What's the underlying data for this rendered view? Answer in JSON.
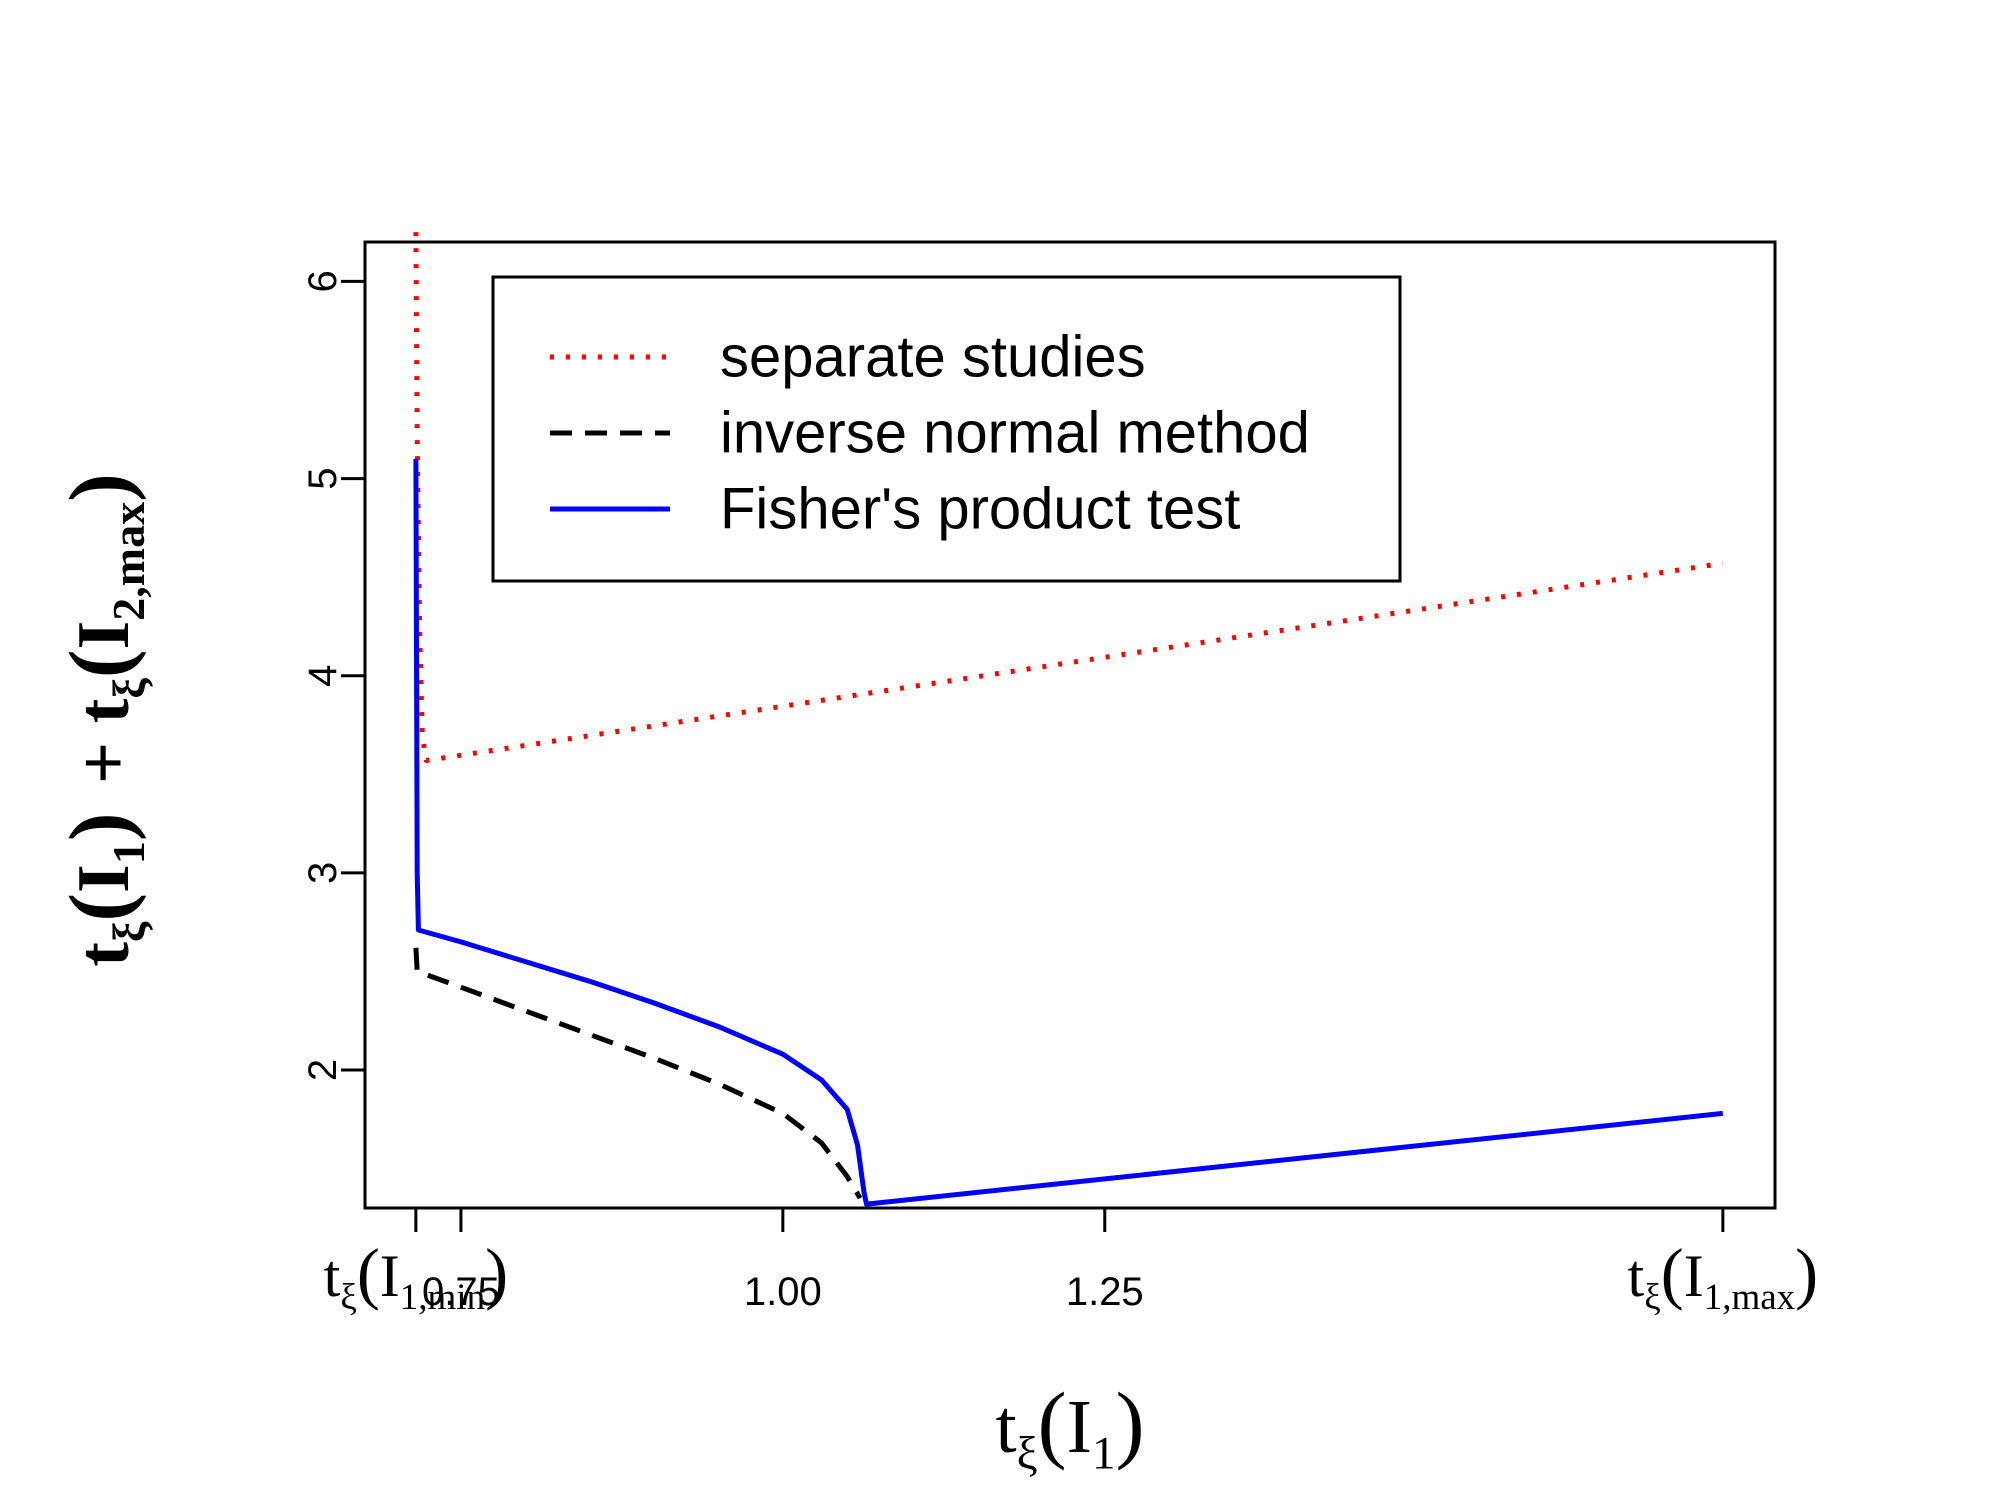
{
  "chart_data": {
    "type": "line",
    "title": "",
    "xlabel": {
      "t": "t",
      "sub": "ξ",
      "open": "(",
      "body": "I",
      "bsub": "1",
      "close": ")"
    },
    "ylabel": {
      "part1": {
        "t": "t",
        "sub": "ξ",
        "open": "(",
        "body": "I",
        "bsub": "1",
        "close": ")"
      },
      "plus": "+",
      "part2": {
        "t": "t",
        "sub": "ξ",
        "open": "(",
        "body": "I",
        "bsub": "2,max",
        "close": ")"
      }
    },
    "xlim": [
      0.6755,
      1.7705
    ],
    "ylim": [
      1.3,
      6.2
    ],
    "x_ticks": [
      {
        "value": 0.715,
        "math": {
          "t": "t",
          "sub": "ξ",
          "open": "(",
          "body": "I",
          "bsub": "1,min",
          "close": ")"
        }
      },
      {
        "value": 0.75,
        "label": "0.75"
      },
      {
        "value": 1.0,
        "label": "1.00"
      },
      {
        "value": 1.25,
        "label": "1.25"
      },
      {
        "value": 1.73,
        "math": {
          "t": "t",
          "sub": "ξ",
          "open": "(",
          "body": "I",
          "bsub": "1,max",
          "close": ")"
        }
      }
    ],
    "y_ticks": [
      2,
      3,
      4,
      5,
      6
    ],
    "legend": {
      "position": "top-left",
      "entries": [
        {
          "label": "separate studies",
          "color": "#ff0000",
          "dash": "dotted"
        },
        {
          "label": "inverse normal method",
          "color": "#000000",
          "dash": "dashed"
        },
        {
          "label": "Fisher's product test",
          "color": "#0000ff",
          "dash": "solid"
        }
      ]
    },
    "series": [
      {
        "name": "separate studies",
        "color": "#ff0000",
        "dash": "dotted",
        "points": [
          [
            0.715,
            6.25
          ],
          [
            0.716,
            5.2
          ],
          [
            0.718,
            4.2
          ],
          [
            0.72,
            3.7
          ],
          [
            0.723,
            3.57
          ],
          [
            1.73,
            4.57
          ]
        ]
      },
      {
        "name": "inverse normal method",
        "color": "#000000",
        "dash": "dashed",
        "points": [
          [
            0.715,
            2.62
          ],
          [
            0.716,
            2.5
          ],
          [
            0.75,
            2.42
          ],
          [
            0.8,
            2.3
          ],
          [
            0.85,
            2.18
          ],
          [
            0.9,
            2.06
          ],
          [
            0.95,
            1.93
          ],
          [
            1.0,
            1.78
          ],
          [
            1.03,
            1.63
          ],
          [
            1.05,
            1.46
          ],
          [
            1.06,
            1.35
          ]
        ]
      },
      {
        "name": "Fisher's product test",
        "color": "#0000ff",
        "dash": "solid",
        "points": [
          [
            0.715,
            5.1
          ],
          [
            0.716,
            3.0
          ],
          [
            0.717,
            2.71
          ],
          [
            0.75,
            2.65
          ],
          [
            0.8,
            2.55
          ],
          [
            0.85,
            2.45
          ],
          [
            0.9,
            2.34
          ],
          [
            0.95,
            2.22
          ],
          [
            1.0,
            2.08
          ],
          [
            1.03,
            1.95
          ],
          [
            1.05,
            1.8
          ],
          [
            1.058,
            1.62
          ],
          [
            1.063,
            1.38
          ],
          [
            1.065,
            1.32
          ],
          [
            1.73,
            1.78
          ]
        ]
      }
    ]
  }
}
